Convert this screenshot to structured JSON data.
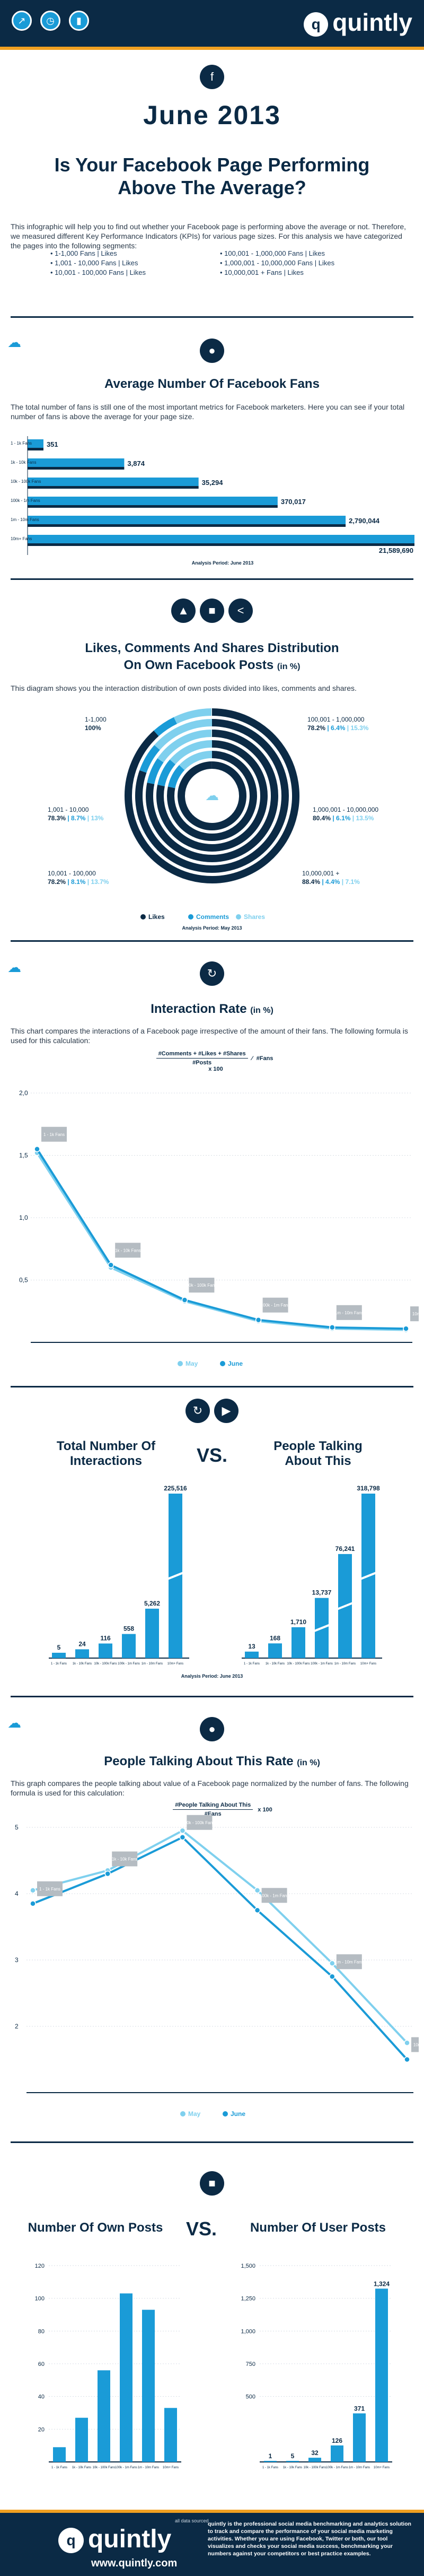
{
  "header": {
    "logo": "quintly",
    "icons": [
      "chart-icon",
      "gauge-icon",
      "bar-icon"
    ]
  },
  "hero": {
    "date": "June 2013",
    "title_line1": "Is Your Facebook Page Performing",
    "title_line2": "Above The Average?",
    "intro": "This infographic will help you to find out whether your Facebook page is performing above the average or not. Therefore, we measured different Key Performance Indicators (KPIs) for various page sizes. For this analysis we have categorized the pages into the following segments:",
    "segments": [
      "1-1,000 Fans | Likes",
      "1,001 - 10,000 Fans | Likes",
      "10,001 - 100,000 Fans | Likes",
      "100,001 - 1,000,000 Fans | Likes",
      "1,000,001 - 10,000,000 Fans | Likes",
      "10,000,001 + Fans | Likes"
    ]
  },
  "fans": {
    "title": "Average Number Of Facebook Fans",
    "text": "The total number of fans is still one of the most important metrics for Facebook marketers. Here you can see if your total number of fans is above the average for your page size.",
    "period": "Analysis Period: June 2013",
    "chart_data": {
      "type": "bar",
      "categories": [
        "1 - 1k Fans",
        "1k - 10k Fans",
        "10k - 100k Fans",
        "100k - 1m Fans",
        "1m - 10m Fans",
        "10m+ Fans"
      ],
      "values": [
        351,
        3874,
        35294,
        370017,
        2790044,
        21589690
      ],
      "labels": [
        "351",
        "3,874",
        "35,294",
        "370,017",
        "2,790,044",
        "21,589,690"
      ]
    }
  },
  "likes": {
    "title_line1": "Likes, Comments And Shares Distribution",
    "title_line2": "On Own Facebook Posts",
    "unit": "(in %)",
    "text": "This diagram shows you the interaction distribution of own posts divided into likes, comments and shares.",
    "period": "Analysis Period: May 2013",
    "legend": [
      "Likes",
      "Comments",
      "Shares"
    ],
    "chart_data": {
      "type": "pie",
      "segments": [
        {
          "name": "1-1,000",
          "likes": "100%",
          "comments": "",
          "shares": ""
        },
        {
          "name": "1,001 - 10,000",
          "likes": "78.3%",
          "comments": "8.7%",
          "shares": "13%"
        },
        {
          "name": "10,001 - 100,000",
          "likes": "78.2%",
          "comments": "8.1%",
          "shares": "13.7%"
        },
        {
          "name": "100,001 - 1,000,000",
          "likes": "78.2%",
          "comments": "6.4%",
          "shares": "15.3%"
        },
        {
          "name": "1,000,001 - 10,000,000",
          "likes": "80.4%",
          "comments": "6.1%",
          "shares": "13.5%"
        },
        {
          "name": "10,000,001 +",
          "likes": "88.4%",
          "comments": "4.4%",
          "shares": "7.1%"
        }
      ]
    }
  },
  "interaction": {
    "title": "Interaction Rate",
    "unit": "(in %)",
    "text": "This chart compares the interactions of a Facebook page irrespective of the amount of their fans. The following formula is used for this calculation:",
    "formula_top": "#Comments + #Likes + #Shares",
    "formula_bottom": "#Posts",
    "formula_fans": "#Fans",
    "formula_mult": "x 100",
    "legend": [
      "May",
      "June"
    ],
    "chart_data": {
      "type": "line",
      "categories": [
        "1 - 1k Fans",
        "1k - 10k Fans",
        "10k - 100k Fans",
        "100k - 1m Fans",
        "1m - 10m Fans",
        "10m+ Fans"
      ],
      "ylim": [
        0,
        2
      ],
      "yticks": [
        "0,5",
        "1,0",
        "1,5",
        "2,0"
      ],
      "series": [
        {
          "name": "May",
          "values": [
            1.52,
            0.6,
            0.33,
            0.17,
            0.11,
            0.1
          ]
        },
        {
          "name": "June",
          "values": [
            1.55,
            0.62,
            0.34,
            0.18,
            0.12,
            0.11
          ]
        }
      ]
    }
  },
  "vs1": {
    "left_title_line1": "Total Number Of",
    "left_title_line2": "Interactions",
    "vs": "VS.",
    "right_title_line1": "People Talking",
    "right_title_line2": "About This",
    "period": "Analysis Period: June 2013",
    "chart_data": [
      {
        "type": "bar",
        "categories": [
          "1 - 1k Fans",
          "1k - 10k Fans",
          "10k - 100k Fans",
          "100k - 1m Fans",
          "1m - 10m Fans",
          "10m+ Fans"
        ],
        "values": [
          5,
          24,
          116,
          558,
          5262,
          225516
        ],
        "labels": [
          "5",
          "24",
          "116",
          "558",
          "5,262",
          "225,516"
        ]
      },
      {
        "type": "bar",
        "categories": [
          "1 - 1k Fans",
          "1k - 10k Fans",
          "10k - 100k Fans",
          "100k - 1m Fans",
          "1m - 10m Fans",
          "10m+ Fans"
        ],
        "values": [
          13,
          168,
          1710,
          13737,
          76241,
          318798
        ],
        "labels": [
          "13",
          "168",
          "1,710",
          "13,737",
          "76,241",
          "318,798"
        ]
      }
    ]
  },
  "ptat": {
    "title": "People Talking About This Rate",
    "unit": "(in %)",
    "text": "This graph compares the people talking about value of a Facebook page normalized by the number of fans. The following formula is used for this calculation:",
    "formula_top": "#People Talking About This",
    "formula_bottom": "#Fans",
    "formula_mult": "x 100",
    "legend": [
      "May",
      "June"
    ],
    "chart_data": {
      "type": "line",
      "categories": [
        "1 - 1k Fans",
        "1k - 10k Fans",
        "10k - 100k Fans",
        "100k - 1m Fans",
        "1m - 10m Fans",
        "10m+ Fans"
      ],
      "ylim": [
        1,
        5
      ],
      "yticks": [
        "2",
        "3",
        "4",
        "5"
      ],
      "series": [
        {
          "name": "May",
          "values": [
            4.05,
            4.35,
            4.95,
            4.05,
            2.95,
            1.75
          ]
        },
        {
          "name": "June",
          "values": [
            3.85,
            4.3,
            4.85,
            3.75,
            2.75,
            1.5
          ]
        }
      ]
    }
  },
  "vs2": {
    "left_title": "Number Of Own Posts",
    "vs": "VS.",
    "right_title": "Number Of User Posts",
    "chart_data": [
      {
        "type": "bar",
        "categories": [
          "1 - 1k Fans",
          "1k - 10k Fans",
          "10k - 100k Fans",
          "100k - 1m Fans",
          "1m - 10m Fans",
          "10m+ Fans"
        ],
        "values": [
          9,
          27,
          56,
          103,
          93,
          33
        ],
        "ylim": [
          0,
          120
        ],
        "yticks": [
          "20",
          "40",
          "60",
          "80",
          "100",
          "120"
        ]
      },
      {
        "type": "bar",
        "categories": [
          "1 - 1k Fans",
          "1k - 10k Fans",
          "10k - 100k Fans",
          "100k - 1m Fans",
          "1m - 10m Fans",
          "10m+ Fans"
        ],
        "values": [
          1,
          5,
          32,
          126,
          371,
          1324
        ],
        "labels": [
          "1",
          "5",
          "32",
          "126",
          "371",
          "1,324"
        ],
        "ylim": [
          0,
          1500
        ],
        "yticks": [
          "500",
          "750",
          "1,000",
          "1,250",
          "1,500"
        ]
      }
    ]
  },
  "footer": {
    "tagline": "all data sourced",
    "logo": "quintly",
    "url": "www.quintly.com",
    "desc": "quintly is the professional social media benchmarking and analytics solution to track and compare the performance of your social media marketing activities. Whether you are using Facebook, Twitter or both, our tool visualizes and checks your social media success, benchmarking your numbers against your competitors or best practice examples."
  }
}
